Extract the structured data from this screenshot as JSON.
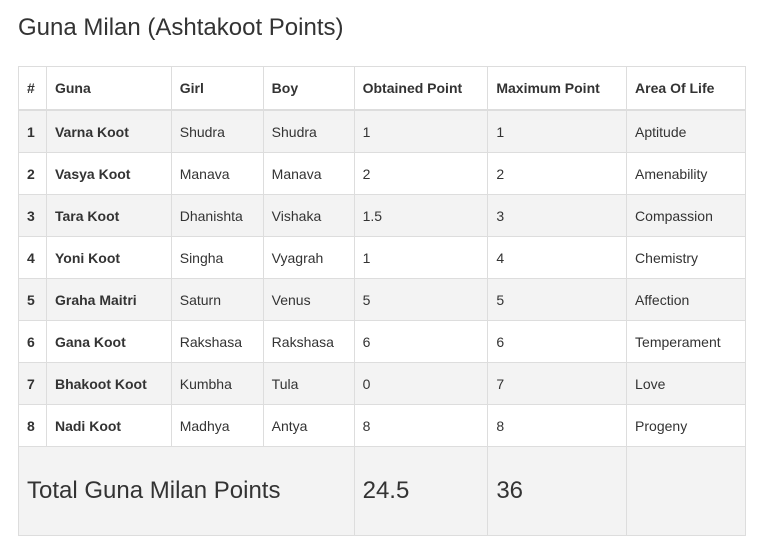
{
  "title": "Guna Milan (Ashtakoot Points)",
  "table": {
    "headers": [
      "#",
      "Guna",
      "Girl",
      "Boy",
      "Obtained Point",
      "Maximum Point",
      "Area Of Life"
    ],
    "rows": [
      {
        "num": "1",
        "guna": "Varna Koot",
        "girl": "Shudra",
        "boy": "Shudra",
        "obtained": "1",
        "maximum": "1",
        "area": "Aptitude"
      },
      {
        "num": "2",
        "guna": "Vasya Koot",
        "girl": "Manava",
        "boy": "Manava",
        "obtained": "2",
        "maximum": "2",
        "area": "Amenability"
      },
      {
        "num": "3",
        "guna": "Tara Koot",
        "girl": "Dhanishta",
        "boy": "Vishaka",
        "obtained": "1.5",
        "maximum": "3",
        "area": "Compassion"
      },
      {
        "num": "4",
        "guna": "Yoni Koot",
        "girl": "Singha",
        "boy": "Vyagrah",
        "obtained": "1",
        "maximum": "4",
        "area": "Chemistry"
      },
      {
        "num": "5",
        "guna": "Graha Maitri",
        "girl": "Saturn",
        "boy": "Venus",
        "obtained": "5",
        "maximum": "5",
        "area": "Affection"
      },
      {
        "num": "6",
        "guna": "Gana Koot",
        "girl": "Rakshasa",
        "boy": "Rakshasa",
        "obtained": "6",
        "maximum": "6",
        "area": "Temperament"
      },
      {
        "num": "7",
        "guna": "Bhakoot Koot",
        "girl": "Kumbha",
        "boy": "Tula",
        "obtained": "0",
        "maximum": "7",
        "area": "Love"
      },
      {
        "num": "8",
        "guna": "Nadi Koot",
        "girl": "Madhya",
        "boy": "Antya",
        "obtained": "8",
        "maximum": "8",
        "area": "Progeny"
      }
    ],
    "total": {
      "label": "Total Guna Milan Points",
      "obtained": "24.5",
      "maximum": "36"
    }
  }
}
